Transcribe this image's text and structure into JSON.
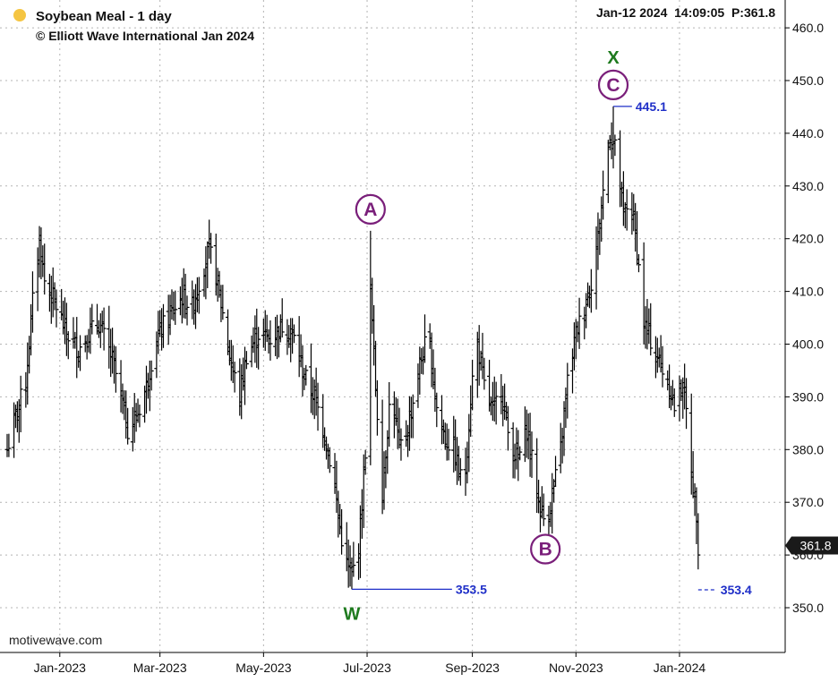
{
  "header": {
    "title": "Soybean Meal - 1 day",
    "copyright": "© Elliott Wave International Jan 2024",
    "status": "Jan-12 2024  14:09:05  P:361.8",
    "dot_color": "#f5c542"
  },
  "watermark": "motivewave.com",
  "colors": {
    "bar": "#000000",
    "grid": "#b4b4b4",
    "wave_label": "#7a1f7a",
    "wx_label": "#1e7a1e",
    "level_line": "#1f2fc8",
    "price_badge_bg": "#1a1a1a",
    "price_badge_text": "#ffffff"
  },
  "chart_data": {
    "type": "ohlc",
    "title": "Soybean Meal - 1 day",
    "ylim": [
      343,
      463
    ],
    "y_ticks": [
      350,
      360,
      370,
      380,
      390,
      400,
      410,
      420,
      430,
      440,
      450,
      460
    ],
    "y_tick_labels": [
      "350.0",
      "360.0",
      "370.0",
      "380.0",
      "390.0",
      "400.0",
      "410.0",
      "420.0",
      "430.0",
      "440.0",
      "450.0",
      "460.0"
    ],
    "x_range": [
      "2022-12-01",
      "2024-02-15"
    ],
    "x_ticks": [
      {
        "date": "2023-01-01",
        "label": "Jan-2023"
      },
      {
        "date": "2023-03-01",
        "label": "Mar-2023"
      },
      {
        "date": "2023-05-01",
        "label": "May-2023"
      },
      {
        "date": "2023-07-01",
        "label": "Jul-2023"
      },
      {
        "date": "2023-09-01",
        "label": "Sep-2023"
      },
      {
        "date": "2023-11-01",
        "label": "Nov-2023"
      },
      {
        "date": "2024-01-01",
        "label": "Jan-2024"
      }
    ],
    "anchors": [
      [
        "2022-12-01",
        380
      ],
      [
        "2022-12-05",
        385
      ],
      [
        "2022-12-12",
        393
      ],
      [
        "2022-12-16",
        408
      ],
      [
        "2022-12-20",
        420
      ],
      [
        "2022-12-23",
        412
      ],
      [
        "2022-12-29",
        408
      ],
      [
        "2023-01-05",
        402
      ],
      [
        "2023-01-12",
        399
      ],
      [
        "2023-01-18",
        402
      ],
      [
        "2023-01-24",
        404
      ],
      [
        "2023-02-01",
        397
      ],
      [
        "2023-02-06",
        390
      ],
      [
        "2023-02-10",
        384
      ],
      [
        "2023-02-15",
        386
      ],
      [
        "2023-02-21",
        392
      ],
      [
        "2023-02-26",
        400
      ],
      [
        "2023-03-02",
        403
      ],
      [
        "2023-03-08",
        406
      ],
      [
        "2023-03-14",
        409
      ],
      [
        "2023-03-20",
        407
      ],
      [
        "2023-03-26",
        414
      ],
      [
        "2023-03-30",
        418
      ],
      [
        "2023-04-03",
        413
      ],
      [
        "2023-04-08",
        404
      ],
      [
        "2023-04-12",
        396
      ],
      [
        "2023-04-17",
        390
      ],
      [
        "2023-04-21",
        398
      ],
      [
        "2023-04-28",
        402
      ],
      [
        "2023-05-06",
        401
      ],
      [
        "2023-05-13",
        404
      ],
      [
        "2023-05-19",
        401
      ],
      [
        "2023-05-25",
        394
      ],
      [
        "2023-05-31",
        390
      ],
      [
        "2023-06-06",
        383
      ],
      [
        "2023-06-11",
        375
      ],
      [
        "2023-06-15",
        365
      ],
      [
        "2023-06-19",
        358
      ],
      [
        "2023-06-22",
        356
      ],
      [
        "2023-06-26",
        362
      ],
      [
        "2023-06-28",
        370
      ],
      [
        "2023-07-01",
        385
      ],
      [
        "2023-07-03",
        410
      ],
      [
        "2023-07-06",
        392
      ],
      [
        "2023-07-10",
        372
      ],
      [
        "2023-07-15",
        392
      ],
      [
        "2023-07-20",
        380
      ],
      [
        "2023-07-25",
        384
      ],
      [
        "2023-08-01",
        396
      ],
      [
        "2023-08-06",
        402
      ],
      [
        "2023-08-11",
        388
      ],
      [
        "2023-08-16",
        382
      ],
      [
        "2023-08-21",
        380
      ],
      [
        "2023-08-27",
        372
      ],
      [
        "2023-09-03",
        402
      ],
      [
        "2023-09-08",
        392
      ],
      [
        "2023-09-13",
        387
      ],
      [
        "2023-09-18",
        392
      ],
      [
        "2023-09-23",
        381
      ],
      [
        "2023-09-28",
        378
      ],
      [
        "2023-10-03",
        384
      ],
      [
        "2023-10-06",
        378
      ],
      [
        "2023-10-10",
        370
      ],
      [
        "2023-10-14",
        366
      ],
      [
        "2023-10-18",
        371
      ],
      [
        "2023-10-23",
        380
      ],
      [
        "2023-10-27",
        393
      ],
      [
        "2023-11-01",
        402
      ],
      [
        "2023-11-05",
        406
      ],
      [
        "2023-11-10",
        412
      ],
      [
        "2023-11-14",
        420
      ],
      [
        "2023-11-18",
        432
      ],
      [
        "2023-11-21",
        440
      ],
      [
        "2023-11-25",
        436
      ],
      [
        "2023-11-29",
        424
      ],
      [
        "2023-12-03",
        428
      ],
      [
        "2023-12-07",
        418
      ],
      [
        "2023-12-11",
        404
      ],
      [
        "2023-12-16",
        400
      ],
      [
        "2023-12-21",
        396
      ],
      [
        "2023-12-26",
        392
      ],
      [
        "2023-12-29",
        388
      ],
      [
        "2024-01-03",
        393
      ],
      [
        "2024-01-06",
        384
      ],
      [
        "2024-01-08",
        376
      ],
      [
        "2024-01-11",
        368
      ],
      [
        "2024-01-12",
        362
      ]
    ],
    "extremes": [
      {
        "date": "2023-06-22",
        "type": "low",
        "value": 353.5
      },
      {
        "date": "2023-07-03",
        "type": "high",
        "value": 421.5
      },
      {
        "date": "2023-10-14",
        "type": "low",
        "value": 365.2
      },
      {
        "date": "2023-11-23",
        "type": "high",
        "value": 445.1
      }
    ],
    "current_price": 361.8,
    "current_label": "361.8",
    "wave_labels": [
      {
        "text": "W",
        "date": "2023-06-22",
        "value": 353.5,
        "position": "below",
        "style": "plain-green"
      },
      {
        "text": "A",
        "date": "2023-07-03",
        "value": 421.5,
        "position": "above",
        "style": "circled"
      },
      {
        "text": "B",
        "date": "2023-10-14",
        "value": 365.2,
        "position": "below",
        "style": "circled"
      },
      {
        "text": "C",
        "date": "2023-11-23",
        "value": 445.1,
        "position": "above",
        "style": "circled"
      },
      {
        "text": "X",
        "date": "2023-11-23",
        "value": 445.1,
        "position": "above2",
        "style": "plain-green"
      }
    ],
    "levels": [
      {
        "label": "353.5",
        "value": 353.5,
        "from": "2023-06-22",
        "to": "2023-08-20",
        "style": "solid"
      },
      {
        "label": "445.1",
        "value": 445.1,
        "from": "2023-11-23",
        "to": "2023-12-04",
        "style": "solid"
      },
      {
        "label": "353.4",
        "value": 353.4,
        "from": "2024-01-12",
        "to": "2024-01-23",
        "style": "dashed"
      }
    ]
  }
}
